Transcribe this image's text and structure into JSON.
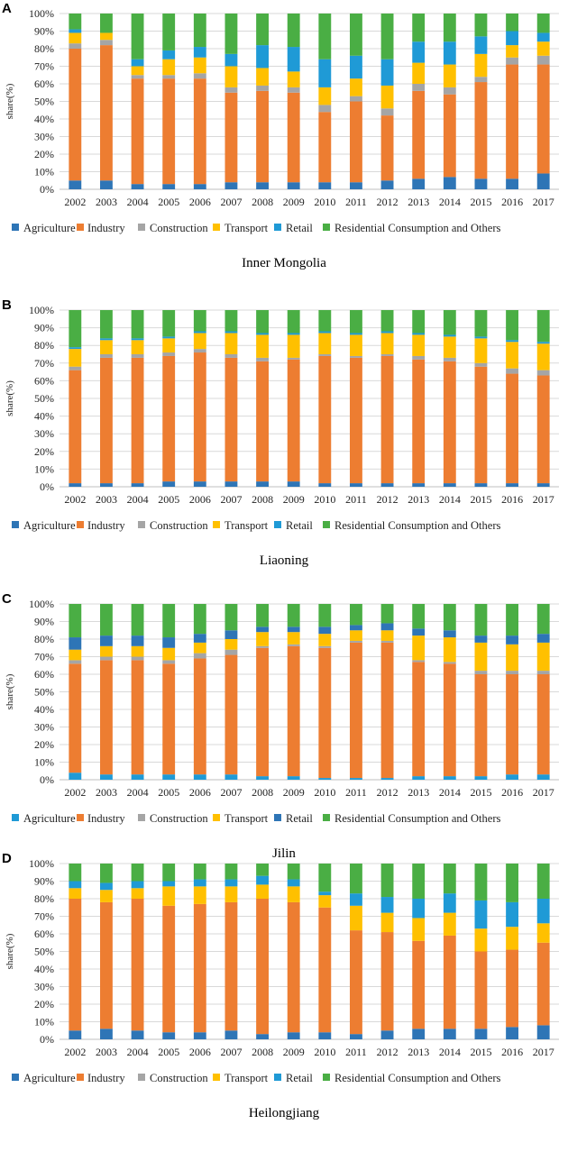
{
  "chart_data": [
    {
      "type": "bar",
      "stacked": true,
      "panel": "A",
      "title": "Inner Mongolia",
      "ylabel": "share(%)",
      "ylim": [
        0,
        100
      ],
      "yticks": [
        "0%",
        "10%",
        "20%",
        "30%",
        "40%",
        "50%",
        "60%",
        "70%",
        "80%",
        "90%",
        "100%"
      ],
      "categories": [
        "2002",
        "2003",
        "2004",
        "2005",
        "2006",
        "2007",
        "2008",
        "2009",
        "2010",
        "2011",
        "2012",
        "2013",
        "2014",
        "2015",
        "2016",
        "2017"
      ],
      "series": [
        {
          "name": "Agriculture",
          "color": "#2e75b6",
          "values": [
            5,
            5,
            3,
            3,
            3,
            4,
            4,
            4,
            4,
            4,
            5,
            6,
            7,
            6,
            6,
            9
          ]
        },
        {
          "name": "Industry",
          "color": "#ed7d31",
          "values": [
            75,
            77,
            60,
            60,
            60,
            51,
            52,
            51,
            40,
            46,
            37,
            50,
            47,
            55,
            65,
            62
          ]
        },
        {
          "name": "Construction",
          "color": "#a5a5a5",
          "values": [
            3,
            3,
            2,
            2,
            3,
            3,
            3,
            3,
            4,
            3,
            4,
            4,
            4,
            3,
            4,
            5
          ]
        },
        {
          "name": "Transport",
          "color": "#ffc000",
          "values": [
            6,
            4,
            5,
            9,
            9,
            12,
            10,
            9,
            10,
            10,
            13,
            12,
            13,
            13,
            7,
            8
          ]
        },
        {
          "name": "Retail",
          "color": "#1f9ad6",
          "values": [
            2,
            0,
            4,
            5,
            6,
            7,
            13,
            14,
            16,
            13,
            15,
            12,
            13,
            10,
            8,
            5
          ]
        },
        {
          "name": "Residential Consumption and Others",
          "color": "#4aae44",
          "values": [
            9,
            11,
            26,
            21,
            19,
            23,
            18,
            19,
            26,
            24,
            26,
            16,
            16,
            13,
            10,
            11
          ]
        }
      ]
    },
    {
      "type": "bar",
      "stacked": true,
      "panel": "B",
      "title": "Liaoning",
      "ylabel": "share(%)",
      "ylim": [
        0,
        100
      ],
      "yticks": [
        "0%",
        "10%",
        "20%",
        "30%",
        "40%",
        "50%",
        "60%",
        "70%",
        "80%",
        "90%",
        "100%"
      ],
      "categories": [
        "2002",
        "2003",
        "2004",
        "2005",
        "2006",
        "2007",
        "2008",
        "2009",
        "2010",
        "2011",
        "2012",
        "2013",
        "2014",
        "2015",
        "2016",
        "2017"
      ],
      "series": [
        {
          "name": "Agriculture",
          "color": "#2e75b6",
          "values": [
            2,
            2,
            2,
            3,
            3,
            3,
            3,
            3,
            2,
            2,
            2,
            2,
            2,
            2,
            2,
            2
          ]
        },
        {
          "name": "Industry",
          "color": "#ed7d31",
          "values": [
            64,
            71,
            71,
            71,
            73,
            70,
            68,
            69,
            72,
            71,
            72,
            70,
            69,
            66,
            62,
            61
          ]
        },
        {
          "name": "Construction",
          "color": "#a5a5a5",
          "values": [
            2,
            2,
            2,
            2,
            2,
            2,
            2,
            1,
            1,
            1,
            1,
            2,
            2,
            2,
            3,
            3
          ]
        },
        {
          "name": "Transport",
          "color": "#ffc000",
          "values": [
            10,
            8,
            8,
            8,
            9,
            12,
            13,
            13,
            12,
            12,
            12,
            12,
            12,
            14,
            15,
            15
          ]
        },
        {
          "name": "Retail",
          "color": "#1f9ad6",
          "values": [
            1,
            1,
            1,
            1,
            1,
            1,
            1,
            1,
            1,
            1,
            1,
            1,
            1,
            1,
            1,
            1
          ]
        },
        {
          "name": "Residential Consumption and Others",
          "color": "#4aae44",
          "values": [
            21,
            16,
            16,
            15,
            12,
            12,
            13,
            13,
            12,
            13,
            12,
            13,
            14,
            15,
            17,
            18
          ]
        }
      ]
    },
    {
      "type": "bar",
      "stacked": true,
      "panel": "C",
      "title": "Jilin",
      "ylabel": "share(%)",
      "ylim": [
        0,
        100
      ],
      "yticks": [
        "0%",
        "10%",
        "20%",
        "30%",
        "40%",
        "50%",
        "60%",
        "70%",
        "80%",
        "90%",
        "100%"
      ],
      "categories": [
        "2002",
        "2003",
        "2004",
        "2005",
        "2006",
        "2007",
        "2008",
        "2009",
        "2010",
        "2011",
        "2012",
        "2013",
        "2014",
        "2015",
        "2016",
        "2017"
      ],
      "series": [
        {
          "name": "Agriculture",
          "color": "#1f9ad6",
          "values": [
            4,
            3,
            3,
            3,
            3,
            3,
            2,
            2,
            1,
            1,
            1,
            2,
            2,
            2,
            3,
            3
          ]
        },
        {
          "name": "Industry",
          "color": "#ed7d31",
          "values": [
            62,
            65,
            65,
            63,
            66,
            68,
            73,
            74,
            74,
            77,
            77,
            65,
            64,
            58,
            57,
            57
          ]
        },
        {
          "name": "Construction",
          "color": "#a5a5a5",
          "values": [
            2,
            2,
            2,
            2,
            3,
            3,
            1,
            1,
            1,
            1,
            1,
            1,
            1,
            2,
            2,
            2
          ]
        },
        {
          "name": "Transport",
          "color": "#ffc000",
          "values": [
            6,
            6,
            6,
            7,
            6,
            6,
            8,
            7,
            7,
            6,
            6,
            14,
            14,
            16,
            15,
            16
          ]
        },
        {
          "name": "Retail",
          "color": "#2e75b6",
          "values": [
            7,
            6,
            6,
            6,
            5,
            5,
            3,
            3,
            4,
            3,
            4,
            4,
            4,
            4,
            5,
            5
          ]
        },
        {
          "name": "Residential Consumption and Others",
          "color": "#4aae44",
          "values": [
            19,
            18,
            18,
            19,
            17,
            15,
            13,
            13,
            13,
            12,
            11,
            14,
            15,
            18,
            18,
            17
          ]
        }
      ]
    },
    {
      "type": "bar",
      "stacked": true,
      "panel": "D",
      "title": "Heilongjiang",
      "ylabel": "share(%)",
      "ylim": [
        0,
        100
      ],
      "yticks": [
        "0%",
        "10%",
        "20%",
        "30%",
        "40%",
        "50%",
        "60%",
        "70%",
        "80%",
        "90%",
        "100%"
      ],
      "categories": [
        "2002",
        "2003",
        "2004",
        "2005",
        "2006",
        "2007",
        "2008",
        "2009",
        "2010",
        "2011",
        "2012",
        "2013",
        "2014",
        "2015",
        "2016",
        "2017"
      ],
      "series": [
        {
          "name": "Agriculture",
          "color": "#2e75b6",
          "values": [
            5,
            6,
            5,
            4,
            4,
            5,
            3,
            4,
            4,
            3,
            5,
            6,
            6,
            6,
            7,
            8
          ]
        },
        {
          "name": "Industry",
          "color": "#ed7d31",
          "values": [
            75,
            72,
            75,
            72,
            73,
            73,
            77,
            74,
            71,
            59,
            56,
            50,
            53,
            44,
            44,
            47
          ]
        },
        {
          "name": "Construction",
          "color": "#a5a5a5",
          "values": [
            0,
            0,
            0,
            0,
            0,
            0,
            0,
            0,
            0,
            0,
            0,
            0,
            0,
            0,
            0,
            0
          ]
        },
        {
          "name": "Transport",
          "color": "#ffc000",
          "values": [
            6,
            7,
            6,
            11,
            10,
            9,
            8,
            9,
            7,
            14,
            11,
            13,
            13,
            13,
            13,
            11
          ]
        },
        {
          "name": "Retail",
          "color": "#1f9ad6",
          "values": [
            4,
            4,
            4,
            3,
            4,
            4,
            5,
            4,
            2,
            7,
            9,
            11,
            11,
            16,
            14,
            14
          ]
        },
        {
          "name": "Residential Consumption and Others",
          "color": "#4aae44",
          "values": [
            10,
            11,
            10,
            10,
            9,
            9,
            7,
            9,
            16,
            17,
            19,
            20,
            17,
            21,
            22,
            20
          ]
        }
      ]
    }
  ]
}
